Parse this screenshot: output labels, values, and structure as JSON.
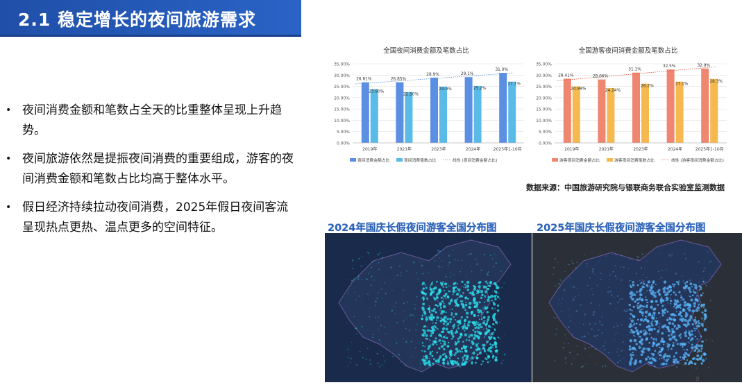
{
  "header": {
    "title": "2.1 稳定增长的夜间旅游需求"
  },
  "bullets": [
    "夜间消费金额和笔数占全天的比重整体呈现上升趋势。",
    "夜间旅游依然是提振夜间消费的重要组成，游客的夜间消费金额和笔数占比均高于整体水平。",
    "假日经济持续拉动夜间消费，2025年假日夜间客流呈现热点更热、温点更多的空间特征。"
  ],
  "chart_data": [
    {
      "type": "bar",
      "title": "全国夜间消费金额及笔数占比",
      "categories": [
        "2019年",
        "2021年",
        "2023年",
        "2024年",
        "2025年1-10月"
      ],
      "series": [
        {
          "name": "夜间消费金额占比",
          "values": [
            26.81,
            26.85,
            28.9,
            29.1,
            31.0
          ],
          "labels": [
            "26.81%",
            "26.85%",
            "28.9%",
            "29.1%",
            "31.0%"
          ],
          "color": "#5b8fe3"
        },
        {
          "name": "夜间消费笔数占比",
          "values": [
            23.8,
            22.5,
            24.9,
            25.2,
            27.1
          ],
          "labels": [
            "23.80%",
            "22.50%",
            "24.9%",
            "25.2%",
            "27.1%"
          ],
          "color": "#5bbbe8"
        }
      ],
      "trendline": {
        "name": "线性 (夜间消费金额占比)",
        "color": "#5b8fe3"
      },
      "ylim": [
        0,
        35
      ],
      "yticks": [
        "0.00%",
        "5.00%",
        "10.00%",
        "15.00%",
        "20.00%",
        "25.00%",
        "30.00%",
        "35.00%"
      ],
      "grid": true,
      "legend": "bottom"
    },
    {
      "type": "bar",
      "title": "全国游客夜间消费金额及笔数占比",
      "categories": [
        "2019年",
        "2021年",
        "2023年",
        "2024年",
        "2025年1-10月"
      ],
      "series": [
        {
          "name": "游客夜间消费金额占比",
          "values": [
            28.41,
            28.06,
            31.1,
            32.5,
            32.9
          ],
          "labels": [
            "28.41%",
            "28.06%",
            "31.1%",
            "32.5%",
            "32.9%"
          ],
          "color": "#ef8670"
        },
        {
          "name": "游客夜间消费笔数占比",
          "values": [
            24.99,
            24.24,
            26.2,
            27.1,
            28.3
          ],
          "labels": [
            "24.99%",
            "24.24%",
            "26.2%",
            "27.1%",
            "28.3%"
          ],
          "color": "#f5b94f"
        }
      ],
      "trendline": {
        "name": "线性 (游客夜间消费金额占比)",
        "color": "#e0503c"
      },
      "ylim": [
        0,
        35
      ],
      "yticks": [
        "0.00%",
        "5.00%",
        "10.00%",
        "15.00%",
        "20.00%",
        "25.00%",
        "30.00%",
        "35.00%"
      ],
      "grid": true,
      "legend": "bottom"
    }
  ],
  "source": "数据来源：中国旅游研究院与银联商务联合实验室监测数据",
  "maps": [
    {
      "title": "2024年国庆长假夜间游客全国分布图",
      "background": "#1a2a4a",
      "glow": "#29e3f0"
    },
    {
      "title": "2025年国庆长假夜间游客全国分布图",
      "background": "#2a2f38",
      "glow": "#5ab8ff"
    }
  ],
  "page_number": "9"
}
